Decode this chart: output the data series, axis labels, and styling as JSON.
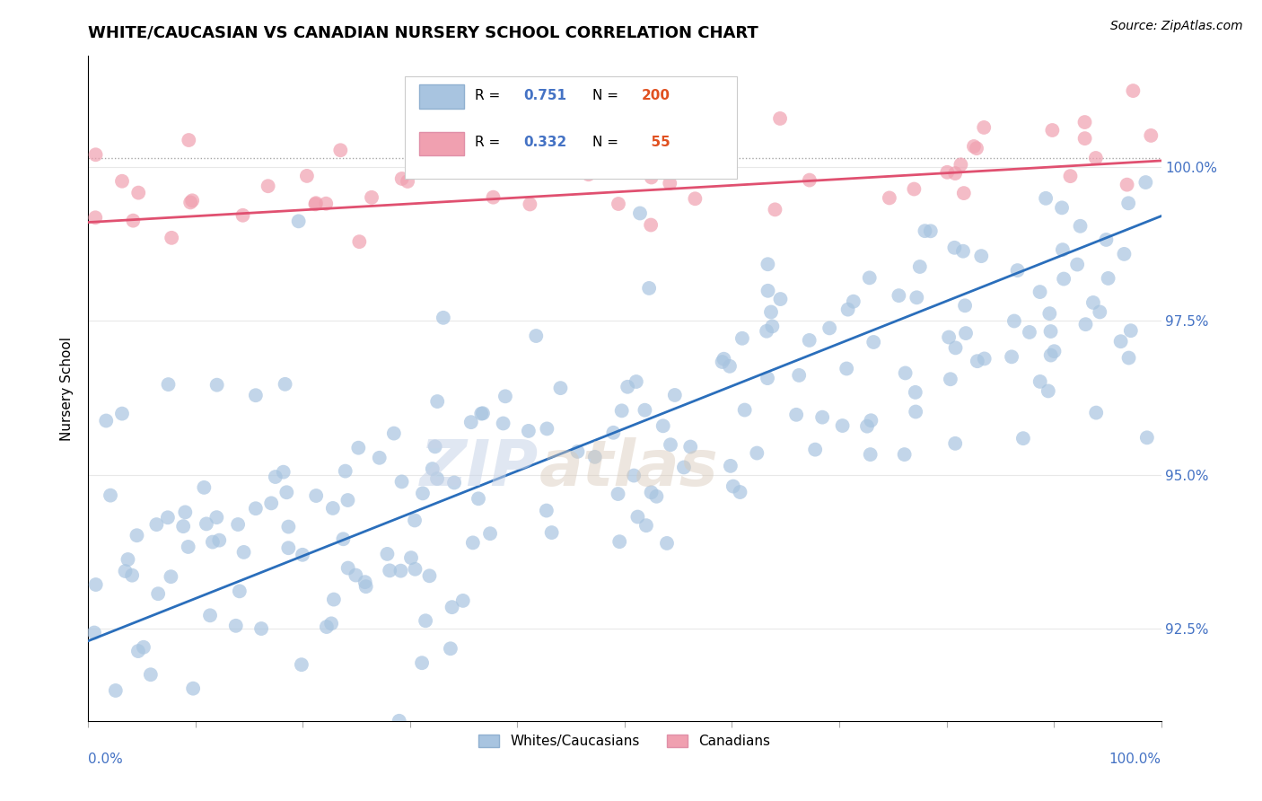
{
  "title": "WHITE/CAUCASIAN VS CANADIAN NURSERY SCHOOL CORRELATION CHART",
  "source": "Source: ZipAtlas.com",
  "ylabel": "Nursery School",
  "legend_labels": [
    "Whites/Caucasians",
    "Canadians"
  ],
  "blue_R": 0.751,
  "blue_N": 200,
  "pink_R": 0.332,
  "pink_N": 55,
  "blue_color": "#a8c4e0",
  "blue_line_color": "#2a6ebb",
  "pink_color": "#f0a0b0",
  "pink_line_color": "#e05070",
  "right_yticks": [
    92.5,
    95.0,
    97.5,
    100.0
  ],
  "background_color": "#ffffff",
  "watermark_zip": "ZIP",
  "watermark_atlas": "atlas",
  "blue_scatter_seed": 42,
  "pink_scatter_seed": 99,
  "ylim_min": 91.0,
  "ylim_max": 101.8,
  "xlim_min": 0,
  "xlim_max": 100,
  "blue_line_x": [
    0,
    100
  ],
  "blue_line_y": [
    92.3,
    99.2
  ],
  "pink_line_x": [
    0,
    100
  ],
  "pink_line_y": [
    99.1,
    100.1
  ],
  "dotted_line_y": 100.15
}
